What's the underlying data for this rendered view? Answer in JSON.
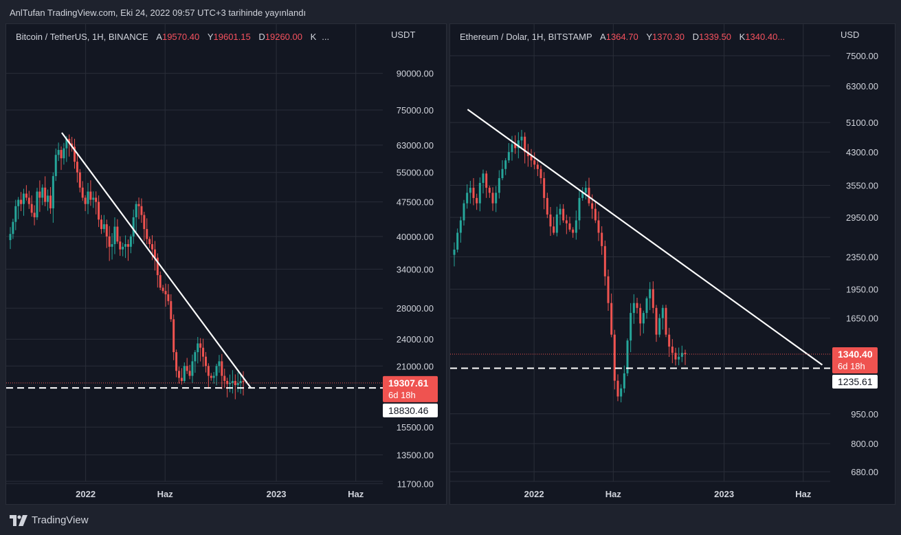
{
  "caption": "AnlTufan TradingView.com, Eki 24, 2022 09:57 UTC+3 tarihinde yayınlandı",
  "footer": {
    "brand": "TradingView",
    "logo_icon": "tradingview-logo-icon"
  },
  "colors": {
    "up": "#26a69a",
    "down": "#ef5350",
    "line": "#ffffff",
    "grid": "#2a2e39",
    "bg": "#131722"
  },
  "chart_data": [
    {
      "type": "candlestick",
      "symbol": "Bitcoin / TetherUS, 1H, BINANCE",
      "ohlc": {
        "a_key": "A",
        "a": "19570.40",
        "y_key": "Y",
        "y": "19601.15",
        "d_key": "D",
        "d": "19260.00",
        "k_key": "K",
        "more": "..."
      },
      "currency": "USDT",
      "scale": "log",
      "ylim": [
        10500,
        115000
      ],
      "y_ticks": [
        {
          "v": 90000,
          "label": "90000.00"
        },
        {
          "v": 75000,
          "label": "75000.00"
        },
        {
          "v": 63000,
          "label": "63000.00"
        },
        {
          "v": 55000,
          "label": "55000.00"
        },
        {
          "v": 47500,
          "label": "47500.00"
        },
        {
          "v": 40000,
          "label": "40000.00"
        },
        {
          "v": 34000,
          "label": "34000.00"
        },
        {
          "v": 28000,
          "label": "28000.00"
        },
        {
          "v": 24000,
          "label": "24000.00"
        },
        {
          "v": 21000,
          "label": "21000.00"
        },
        {
          "v": 15500,
          "label": "15500.00"
        },
        {
          "v": 13500,
          "label": "13500.00"
        },
        {
          "v": 11700,
          "label": "11700.00"
        }
      ],
      "x_ticks": [
        {
          "t": 22,
          "label": "2022"
        },
        {
          "t": 27,
          "label": "Haz"
        },
        {
          "t": 34,
          "label": "2023"
        },
        {
          "t": 39,
          "label": "Haz"
        }
      ],
      "xlim": [
        17.0,
        40.7
      ],
      "last_price": {
        "value": 19307.61,
        "label": "19307.61",
        "countdown": "6d 18h"
      },
      "support": {
        "value": 18830.46,
        "label": "18830.46"
      },
      "trendline": [
        [
          20.5,
          67000
        ],
        [
          32.4,
          18830
        ]
      ],
      "closes": [
        40500,
        43000,
        46500,
        48000,
        47000,
        49500,
        48500,
        47000,
        45000,
        44000,
        50000,
        48500,
        51000,
        47500,
        49000,
        46000,
        54000,
        60000,
        61500,
        59000,
        62000,
        65000,
        63500,
        62500,
        58000,
        55000,
        51000,
        48500,
        47000,
        50000,
        48000,
        48500,
        47500,
        43500,
        41500,
        42500,
        40000,
        38000,
        38500,
        42000,
        39000,
        37500,
        38000,
        38500,
        38000,
        40000,
        44000,
        47000,
        46500,
        44500,
        41500,
        39500,
        38500,
        37500,
        36000,
        33000,
        31000,
        30500,
        30000,
        29000,
        26500,
        22500,
        20500,
        19800,
        19500,
        21000,
        20500,
        20000,
        21500,
        22500,
        23500,
        23000,
        22000,
        21000,
        20000,
        19800,
        20000,
        21000,
        21500,
        20000,
        19500,
        19200,
        19300,
        19500,
        19100,
        19300,
        19500,
        19400
      ],
      "vol": 0.022
    },
    {
      "type": "candlestick",
      "symbol": "Ethereum / Dolar, 1H, BITSTAMP",
      "ohlc": {
        "a_key": "A",
        "a": "1364.70",
        "y_key": "Y",
        "y": "1370.30",
        "d_key": "D",
        "d": "1339.50",
        "k_key": "K",
        "more": "1340.40..."
      },
      "currency": "USD",
      "scale": "log",
      "ylim": [
        560,
        9000
      ],
      "y_ticks": [
        {
          "v": 7500,
          "label": "7500.00"
        },
        {
          "v": 6300,
          "label": "6300.00"
        },
        {
          "v": 5100,
          "label": "5100.00"
        },
        {
          "v": 4300,
          "label": "4300.00"
        },
        {
          "v": 3550,
          "label": "3550.00"
        },
        {
          "v": 2950,
          "label": "2950.00"
        },
        {
          "v": 2350,
          "label": "2350.00"
        },
        {
          "v": 1950,
          "label": "1950.00"
        },
        {
          "v": 1650,
          "label": "1650.00"
        },
        {
          "v": 950,
          "label": "950.00"
        },
        {
          "v": 800,
          "label": "800.00"
        },
        {
          "v": 680,
          "label": "680.00"
        }
      ],
      "x_ticks": [
        {
          "t": 22,
          "label": "2022"
        },
        {
          "t": 27,
          "label": "Haz"
        },
        {
          "t": 34,
          "label": "2023"
        },
        {
          "t": 39,
          "label": "Haz"
        }
      ],
      "xlim": [
        16.7,
        40.7
      ],
      "last_price": {
        "value": 1340.4,
        "label": "1340.40",
        "countdown": "6d 18h"
      },
      "support": {
        "value": 1235.61,
        "label": "1235.61"
      },
      "trendline": [
        [
          17.8,
          5500
        ],
        [
          40.2,
          1260
        ]
      ],
      "closes": [
        2450,
        2700,
        2900,
        3200,
        3400,
        3500,
        3300,
        3200,
        3600,
        3800,
        3500,
        3400,
        3200,
        3400,
        3700,
        3900,
        4100,
        4300,
        4500,
        4400,
        4600,
        4700,
        4300,
        4200,
        4100,
        4000,
        3900,
        3700,
        3300,
        3000,
        2800,
        2700,
        3000,
        3100,
        2900,
        2850,
        2750,
        2700,
        2900,
        3300,
        3400,
        3500,
        3200,
        3100,
        2900,
        2700,
        2500,
        2100,
        1800,
        1500,
        1150,
        1050,
        1100,
        1200,
        1450,
        1700,
        1800,
        1750,
        1600,
        1700,
        1850,
        1950,
        1750,
        1500,
        1650,
        1750,
        1500,
        1400,
        1350,
        1300,
        1320,
        1350,
        1340
      ]
    }
  ]
}
